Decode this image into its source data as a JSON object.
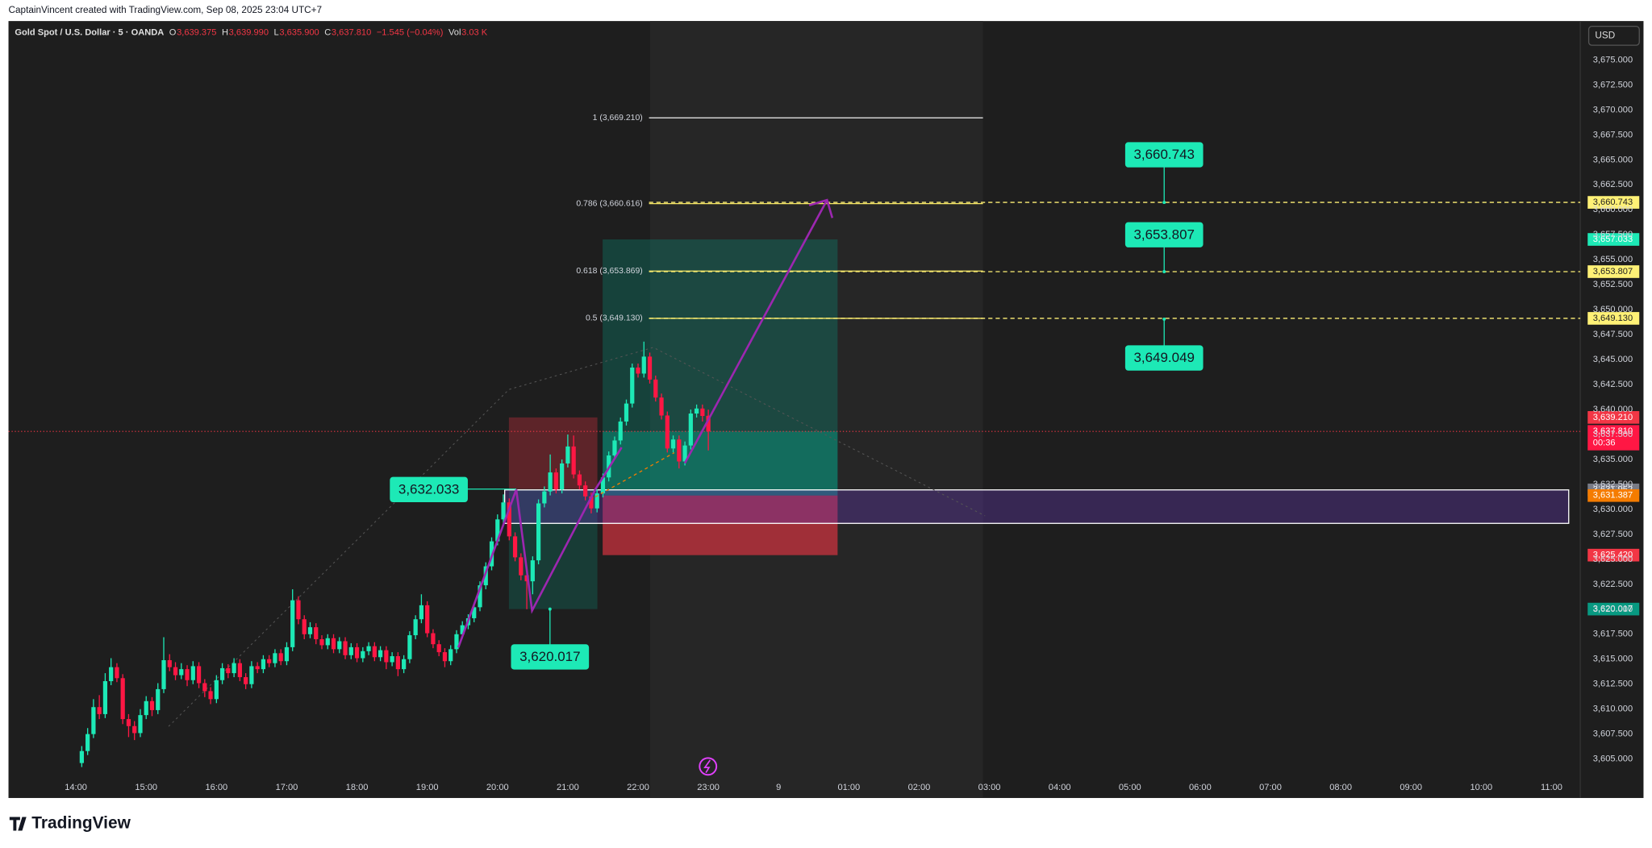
{
  "attribution": "CaptainVincent created with TradingView.com, Sep 08, 2025 23:04 UTC+7",
  "logo": "TradingView",
  "currency": "USD",
  "countdown": "00:36",
  "header": {
    "symbol": "Gold Spot / U.S. Dollar · 5 · OANDA",
    "o_label": "O",
    "o": "3,639.375",
    "h_label": "H",
    "h": "3,639.990",
    "l_label": "L",
    "l": "3,635.900",
    "c_label": "C",
    "c": "3,637.810",
    "change": "−1.545 (−0.04%)",
    "vol_label": "Vol",
    "vol": "3.03 K"
  },
  "chart_data": {
    "type": "candlestick",
    "up_color": "#1de9b6",
    "down_color": "#ff1744",
    "grid": false,
    "ylim": [
      3601.1,
      3678.9
    ],
    "yticks": [
      {
        "value": 3605,
        "label": "3,605.000"
      },
      {
        "value": 3607.5,
        "label": "3,607.500"
      },
      {
        "value": 3610,
        "label": "3,610.000"
      },
      {
        "value": 3612.5,
        "label": "3,612.500"
      },
      {
        "value": 3615,
        "label": "3,615.000"
      },
      {
        "value": 3617.5,
        "label": "3,617.500"
      },
      {
        "value": 3620,
        "label": "3,620.000"
      },
      {
        "value": 3622.5,
        "label": "3,622.500"
      },
      {
        "value": 3625,
        "label": "3,625.000"
      },
      {
        "value": 3627.5,
        "label": "3,627.500"
      },
      {
        "value": 3630,
        "label": "3,630.000"
      },
      {
        "value": 3632.5,
        "label": "3,632.500"
      },
      {
        "value": 3635,
        "label": "3,635.000"
      },
      {
        "value": 3637.5,
        "label": "3,637.500"
      },
      {
        "value": 3640,
        "label": "3,640.000"
      },
      {
        "value": 3642.5,
        "label": "3,642.500"
      },
      {
        "value": 3645,
        "label": "3,645.000"
      },
      {
        "value": 3647.5,
        "label": "3,647.500"
      },
      {
        "value": 3650,
        "label": "3,650.000"
      },
      {
        "value": 3652.5,
        "label": "3,652.500"
      },
      {
        "value": 3655,
        "label": "3,655.000"
      },
      {
        "value": 3657.5,
        "label": "3,657.500"
      },
      {
        "value": 3660,
        "label": "3,660.000"
      },
      {
        "value": 3662.5,
        "label": "3,662.500"
      },
      {
        "value": 3665,
        "label": "3,665.000"
      },
      {
        "value": 3667.5,
        "label": "3,667.500"
      },
      {
        "value": 3670,
        "label": "3,670.000"
      },
      {
        "value": 3672.5,
        "label": "3,672.500"
      },
      {
        "value": 3675,
        "label": "3,675.000"
      }
    ],
    "xticks": [
      "14:00",
      "15:00",
      "16:00",
      "17:00",
      "18:00",
      "19:00",
      "20:00",
      "21:00",
      "22:00",
      "23:00",
      "9",
      "01:00",
      "02:00",
      "03:00",
      "04:00",
      "05:00",
      "06:00",
      "07:00",
      "08:00",
      "09:00",
      "10:00",
      "11:00"
    ],
    "ohlc": [
      [
        3604.6,
        3606.3,
        3604.2,
        3605.8
      ],
      [
        3605.8,
        3608.1,
        3605.4,
        3607.5
      ],
      [
        3607.5,
        3611.0,
        3607.1,
        3610.2
      ],
      [
        3610.2,
        3611.4,
        3609.0,
        3609.5
      ],
      [
        3609.5,
        3613.6,
        3609.1,
        3612.8
      ],
      [
        3612.8,
        3615.1,
        3612.4,
        3614.2
      ],
      [
        3614.2,
        3614.6,
        3612.7,
        3613.1
      ],
      [
        3613.1,
        3613.5,
        3608.5,
        3609.0
      ],
      [
        3609.0,
        3609.5,
        3607.2,
        3608.3
      ],
      [
        3608.3,
        3608.8,
        3606.9,
        3607.6
      ],
      [
        3607.6,
        3610.0,
        3607.2,
        3609.4
      ],
      [
        3609.4,
        3611.3,
        3609.0,
        3610.8
      ],
      [
        3610.8,
        3611.2,
        3609.3,
        3609.9
      ],
      [
        3609.9,
        3612.6,
        3609.5,
        3612.0
      ],
      [
        3612.0,
        3617.2,
        3611.6,
        3614.9
      ],
      [
        3614.9,
        3615.5,
        3613.8,
        3614.2
      ],
      [
        3614.2,
        3614.7,
        3612.9,
        3613.4
      ],
      [
        3613.4,
        3614.6,
        3613.0,
        3614.0
      ],
      [
        3614.0,
        3614.4,
        3612.3,
        3612.9
      ],
      [
        3612.9,
        3614.8,
        3612.5,
        3614.3
      ],
      [
        3614.3,
        3614.7,
        3612.1,
        3612.6
      ],
      [
        3612.6,
        3613.0,
        3611.2,
        3611.8
      ],
      [
        3611.8,
        3612.2,
        3610.5,
        3611.0
      ],
      [
        3611.0,
        3613.4,
        3610.6,
        3612.9
      ],
      [
        3612.9,
        3614.6,
        3612.5,
        3614.1
      ],
      [
        3614.1,
        3614.5,
        3613.1,
        3613.6
      ],
      [
        3613.6,
        3615.1,
        3613.2,
        3614.6
      ],
      [
        3614.6,
        3615.0,
        3612.8,
        3613.2
      ],
      [
        3613.2,
        3613.6,
        3612.0,
        3612.5
      ],
      [
        3612.5,
        3614.8,
        3612.1,
        3614.3
      ],
      [
        3614.3,
        3614.7,
        3613.6,
        3614.0
      ],
      [
        3614.0,
        3615.4,
        3613.6,
        3615.0
      ],
      [
        3615.0,
        3615.4,
        3614.2,
        3614.6
      ],
      [
        3614.6,
        3616.0,
        3614.2,
        3615.6
      ],
      [
        3615.6,
        3616.0,
        3614.4,
        3614.8
      ],
      [
        3614.8,
        3616.7,
        3614.4,
        3616.2
      ],
      [
        3616.2,
        3622.0,
        3615.8,
        3620.9
      ],
      [
        3620.9,
        3621.3,
        3618.5,
        3619.0
      ],
      [
        3619.0,
        3619.4,
        3617.0,
        3617.5
      ],
      [
        3617.5,
        3618.7,
        3617.1,
        3618.2
      ],
      [
        3618.2,
        3618.6,
        3616.5,
        3617.0
      ],
      [
        3617.0,
        3617.4,
        3616.0,
        3616.4
      ],
      [
        3616.4,
        3617.5,
        3616.0,
        3617.1
      ],
      [
        3617.1,
        3617.5,
        3615.6,
        3616.0
      ],
      [
        3616.0,
        3617.2,
        3615.6,
        3616.8
      ],
      [
        3616.8,
        3617.2,
        3615.0,
        3615.4
      ],
      [
        3615.4,
        3616.6,
        3615.0,
        3616.2
      ],
      [
        3616.2,
        3616.6,
        3614.7,
        3615.1
      ],
      [
        3615.1,
        3616.2,
        3614.7,
        3615.8
      ],
      [
        3615.8,
        3616.7,
        3615.4,
        3616.3
      ],
      [
        3616.3,
        3616.7,
        3614.8,
        3615.2
      ],
      [
        3615.2,
        3616.3,
        3614.8,
        3615.9
      ],
      [
        3615.9,
        3616.3,
        3614.0,
        3614.7
      ],
      [
        3614.7,
        3615.7,
        3614.3,
        3615.3
      ],
      [
        3615.3,
        3615.7,
        3613.3,
        3614.0
      ],
      [
        3614.0,
        3615.4,
        3613.6,
        3615.0
      ],
      [
        3615.0,
        3617.8,
        3614.6,
        3617.4
      ],
      [
        3617.4,
        3619.4,
        3617.0,
        3619.0
      ],
      [
        3619.0,
        3621.5,
        3618.6,
        3620.4
      ],
      [
        3620.4,
        3620.8,
        3617.2,
        3617.6
      ],
      [
        3617.6,
        3618.0,
        3616.1,
        3616.5
      ],
      [
        3616.5,
        3616.9,
        3615.3,
        3615.7
      ],
      [
        3615.7,
        3616.1,
        3614.2,
        3614.8
      ],
      [
        3614.8,
        3616.4,
        3614.4,
        3616.0
      ],
      [
        3616.0,
        3617.9,
        3615.6,
        3617.5
      ],
      [
        3617.5,
        3618.8,
        3617.1,
        3618.4
      ],
      [
        3618.4,
        3619.5,
        3618.0,
        3619.1
      ],
      [
        3619.1,
        3620.6,
        3618.7,
        3620.2
      ],
      [
        3620.2,
        3622.8,
        3619.8,
        3622.4
      ],
      [
        3622.4,
        3624.7,
        3622.0,
        3624.3
      ],
      [
        3624.3,
        3627.2,
        3623.9,
        3626.8
      ],
      [
        3626.8,
        3629.5,
        3626.4,
        3629.0
      ],
      [
        3629.0,
        3631.5,
        3628.6,
        3630.7
      ],
      [
        3630.7,
        3631.1,
        3626.9,
        3627.3
      ],
      [
        3627.3,
        3627.7,
        3624.8,
        3625.2
      ],
      [
        3625.2,
        3625.6,
        3622.9,
        3623.4
      ],
      [
        3623.4,
        3623.8,
        3620.0,
        3622.8
      ],
      [
        3622.8,
        3625.3,
        3621.5,
        3624.9
      ],
      [
        3624.9,
        3631.0,
        3624.5,
        3630.6
      ],
      [
        3630.6,
        3632.3,
        3630.2,
        3631.8
      ],
      [
        3631.8,
        3635.5,
        3631.4,
        3633.7
      ],
      [
        3633.7,
        3634.1,
        3631.6,
        3632.0
      ],
      [
        3632.0,
        3635.0,
        3631.6,
        3634.6
      ],
      [
        3634.6,
        3637.5,
        3634.2,
        3636.3
      ],
      [
        3636.3,
        3637.4,
        3633.1,
        3633.5
      ],
      [
        3633.5,
        3633.9,
        3632.0,
        3632.4
      ],
      [
        3632.4,
        3632.8,
        3630.9,
        3631.3
      ],
      [
        3631.3,
        3631.7,
        3629.6,
        3630.1
      ],
      [
        3630.1,
        3632.0,
        3629.7,
        3631.6
      ],
      [
        3631.6,
        3633.6,
        3631.2,
        3633.2
      ],
      [
        3633.2,
        3635.8,
        3632.8,
        3635.4
      ],
      [
        3635.4,
        3637.3,
        3635.0,
        3636.9
      ],
      [
        3636.9,
        3639.2,
        3636.5,
        3638.8
      ],
      [
        3638.8,
        3641.0,
        3638.4,
        3640.6
      ],
      [
        3640.6,
        3644.6,
        3640.2,
        3644.2
      ],
      [
        3644.2,
        3644.6,
        3643.2,
        3643.6
      ],
      [
        3643.6,
        3646.8,
        3643.2,
        3645.3
      ],
      [
        3645.3,
        3645.7,
        3642.6,
        3643.0
      ],
      [
        3643.0,
        3643.4,
        3640.8,
        3641.2
      ],
      [
        3641.2,
        3641.6,
        3639.0,
        3639.4
      ],
      [
        3639.4,
        3639.8,
        3635.7,
        3636.1
      ],
      [
        3636.1,
        3637.4,
        3635.7,
        3637.0
      ],
      [
        3637.0,
        3637.4,
        3634.1,
        3634.8
      ],
      [
        3634.8,
        3636.8,
        3634.4,
        3636.4
      ],
      [
        3636.4,
        3640.0,
        3636.0,
        3639.6
      ],
      [
        3639.6,
        3640.5,
        3639.2,
        3640.1
      ],
      [
        3640.1,
        3640.5,
        3638.8,
        3639.355
      ],
      [
        3639.375,
        3639.99,
        3635.9,
        3637.81
      ]
    ],
    "fib_levels": [
      {
        "value": 3669.21,
        "label": "1 (3,669.210)",
        "color": "#e0e0e0"
      },
      {
        "value": 3660.616,
        "label": "0.786 (3,660.616)",
        "color": "#f5e663"
      },
      {
        "value": 3653.869,
        "label": "0.618 (3,653.869)",
        "color": "#f5e663"
      },
      {
        "value": 3649.13,
        "label": "0.5 (3,649.130)",
        "color": "#f5e663"
      }
    ],
    "price_labels": [
      {
        "value": 3660.743,
        "label": "3,660.743",
        "color": "#fff176",
        "text_color": "#222",
        "dashed": true
      },
      {
        "value": 3657.033,
        "label": "3,657.033",
        "color": "#1de9b6",
        "text_color": "#fff",
        "dashed": false
      },
      {
        "value": 3653.807,
        "label": "3,653.807",
        "color": "#fff176",
        "text_color": "#222",
        "dashed": true
      },
      {
        "value": 3649.13,
        "label": "3,649.130",
        "color": "#fff176",
        "text_color": "#222",
        "dashed": true
      },
      {
        "value": 3639.21,
        "label": "3,639.210",
        "color": "#f23645",
        "text_color": "#fff",
        "dashed": false
      },
      {
        "value": 3637.81,
        "label": "3,637.810",
        "color": "#ff1744",
        "text_color": "#fff",
        "dashed": false
      },
      {
        "value": 3631.952,
        "label": "3,631.952",
        "color": "#787b86",
        "text_color": "#fff",
        "dashed": false
      },
      {
        "value": 3631.387,
        "label": "3,631.387",
        "color": "#f57c00",
        "text_color": "#fff",
        "dashed": false
      },
      {
        "value": 3625.42,
        "label": "3,625.420",
        "color": "#f23645",
        "text_color": "#fff",
        "dashed": false
      },
      {
        "value": 3620.017,
        "label": "3,620.017",
        "color": "#089981",
        "text_color": "#fff",
        "dashed": false
      }
    ],
    "callouts": [
      {
        "value": 3660.743,
        "label": "3,660.743"
      },
      {
        "value": 3653.807,
        "label": "3,653.807"
      },
      {
        "value": 3649.049,
        "label": "3,649.049"
      },
      {
        "value": 3632.033,
        "label": "3,632.033"
      },
      {
        "value": 3620.017,
        "label": "3,620.017"
      }
    ],
    "long_position": {
      "target": 3657.033,
      "entry": 3631.387,
      "stop": 3625.42,
      "current": 3637.81
    },
    "prior_range": {
      "top": 3639.21,
      "mid": 3632.033,
      "bottom": 3620.017
    },
    "zone": {
      "top": 3631.952,
      "bottom": 3628.6
    }
  }
}
